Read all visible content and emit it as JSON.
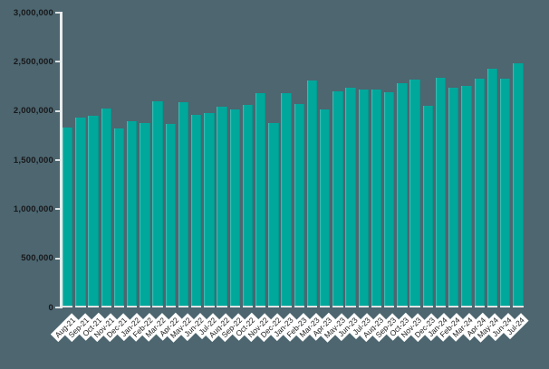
{
  "chart_data": {
    "type": "bar",
    "title": "",
    "xlabel": "",
    "ylabel": "",
    "categories": [
      "Aug-21",
      "Sep-21",
      "Oct-21",
      "Nov-21",
      "Dec-21",
      "Jan-22",
      "Feb-22",
      "Mar-22",
      "Apr-22",
      "May-22",
      "Jun-22",
      "Jul-22",
      "Aug-22",
      "Sep-22",
      "Oct-22",
      "Nov-22",
      "Dec-22",
      "Jan-23",
      "Feb-23",
      "Mar-23",
      "Apr-23",
      "May-23",
      "Jun-23",
      "Jul-23",
      "Aug-23",
      "Sep-23",
      "Oct-23",
      "Nov-23",
      "Dec-23",
      "Jan-24",
      "Feb-24",
      "Mar-24",
      "Apr-24",
      "May-24",
      "Jun-24",
      "Jul-24"
    ],
    "values": [
      1810000,
      1910000,
      1930000,
      2010000,
      1800000,
      1880000,
      1860000,
      2080000,
      1850000,
      2070000,
      1940000,
      1960000,
      2020000,
      2000000,
      2040000,
      2160000,
      1860000,
      2160000,
      2050000,
      2290000,
      2000000,
      2180000,
      2220000,
      2200000,
      2200000,
      2170000,
      2260000,
      2300000,
      2030000,
      2320000,
      2220000,
      2240000,
      2310000,
      2410000,
      2310000,
      2470000
    ],
    "ylim": [
      0,
      3000000
    ],
    "ytick_step": 500000,
    "ytick_labels": [
      "0",
      "500,000",
      "1,000,000",
      "1,500,000",
      "2,000,000",
      "2,500,000",
      "3,000,000"
    ],
    "x_label_rotation_deg": -45,
    "grid": "off",
    "legend": "none",
    "colors": {
      "bar": "#00A79B",
      "background": "#4D6670",
      "axis_line": "#E9EDED",
      "tick_label_text": "#17181A",
      "x_label_text": "#1C1D1F",
      "x_label_background": "#FFFFFF"
    }
  }
}
